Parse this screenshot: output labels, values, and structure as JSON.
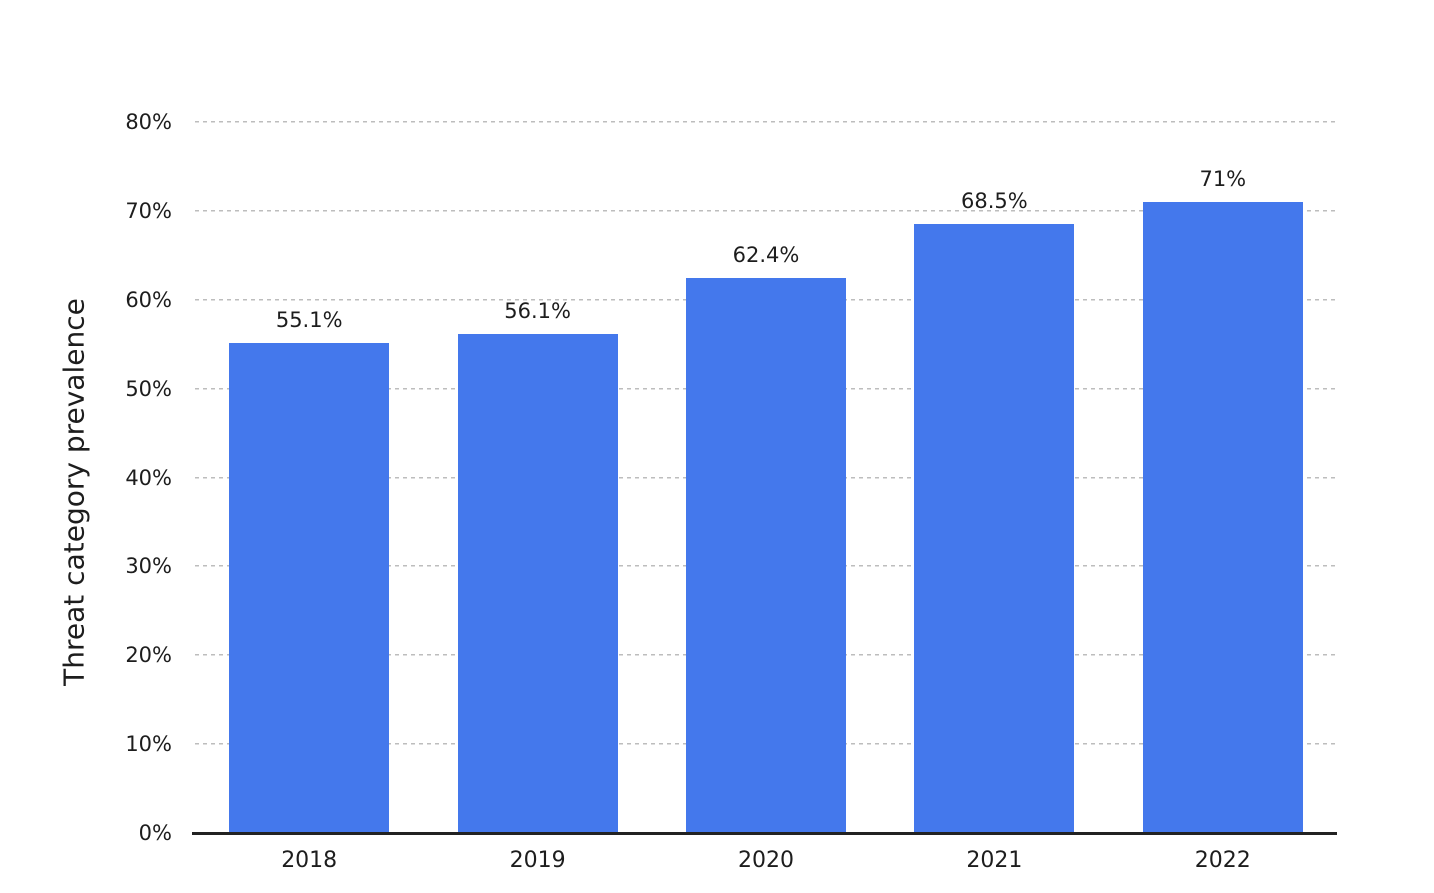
{
  "chart_data": {
    "type": "bar",
    "categories": [
      "2018",
      "2019",
      "2020",
      "2021",
      "2022"
    ],
    "values": [
      55.1,
      56.1,
      62.4,
      68.5,
      71
    ],
    "value_labels": [
      "55.1%",
      "56.1%",
      "62.4%",
      "68.5%",
      "71%"
    ],
    "title": "",
    "xlabel": "",
    "ylabel": "Threat category prevalence",
    "ylim": [
      0,
      80
    ],
    "y_tick_step": 10,
    "y_tick_labels": [
      "0%",
      "10%",
      "20%",
      "30%",
      "40%",
      "50%",
      "60%",
      "70%",
      "80%"
    ],
    "grid": "horizontal-dashed",
    "legend": "none",
    "colors": {
      "bar": "#4478ec",
      "grid": "#bdbdbd",
      "axis": "#222222",
      "text": "#1d1d1d",
      "background": "#ffffff"
    }
  }
}
